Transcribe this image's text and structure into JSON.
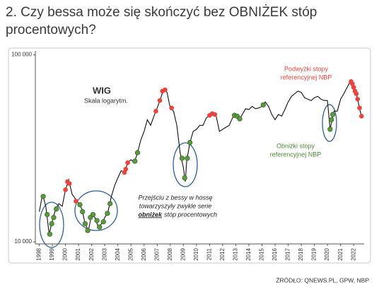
{
  "title": [
    "2. Czy bessa może się skończyć bez OBNIŻEK stóp",
    "procentowych?"
  ],
  "source": "ŹRÓDŁO: QNEWS.PL, GPW, NBP",
  "chart_data": {
    "type": "line",
    "log_scale": true,
    "subtitle": "Skala logarytm.",
    "annotations": {
      "hikes": [
        "Podwyżki stopy",
        "referencyjnej NBP"
      ],
      "cuts": [
        "Obniżki stopy",
        "referencyjnej NBP"
      ],
      "note": [
        "Przejściu z bessy w hossę",
        "towarzyszyły zwykle serie",
        "obniżek",
        "stóp procentowych"
      ]
    },
    "xlim": [
      1997.7,
      2022.8
    ],
    "xticks": [
      1998,
      1999,
      2000,
      2001,
      2002,
      2003,
      2004,
      2005,
      2006,
      2007,
      2008,
      2009,
      2010,
      2011,
      2012,
      2013,
      2014,
      2015,
      2016,
      2017,
      2018,
      2019,
      2020,
      2021,
      2022
    ],
    "ylim": [
      9750,
      105000
    ],
    "yticks": [
      {
        "value": 10000,
        "label": "10 000"
      },
      {
        "value": 100000,
        "label": "100 000"
      }
    ],
    "series": [
      {
        "name": "WIG",
        "color": "#111111",
        "x": [
          1998.0,
          1998.25,
          1998.5,
          1998.75,
          1999.0,
          1999.25,
          1999.5,
          1999.75,
          2000.0,
          2000.25,
          2000.5,
          2000.75,
          2001.0,
          2001.25,
          2001.5,
          2001.75,
          2002.0,
          2002.25,
          2002.5,
          2002.75,
          2003.0,
          2003.25,
          2003.5,
          2003.75,
          2004.0,
          2004.25,
          2004.5,
          2004.75,
          2005.0,
          2005.25,
          2005.5,
          2005.75,
          2006.0,
          2006.25,
          2006.5,
          2006.75,
          2007.0,
          2007.25,
          2007.5,
          2007.75,
          2008.0,
          2008.25,
          2008.5,
          2008.75,
          2009.0,
          2009.15,
          2009.25,
          2009.5,
          2009.75,
          2010.0,
          2010.25,
          2010.5,
          2010.75,
          2011.0,
          2011.25,
          2011.5,
          2011.75,
          2012.0,
          2012.25,
          2012.5,
          2012.75,
          2013.0,
          2013.25,
          2013.5,
          2013.75,
          2014.0,
          2014.25,
          2014.5,
          2014.75,
          2015.0,
          2015.25,
          2015.5,
          2015.75,
          2016.0,
          2016.25,
          2016.5,
          2016.75,
          2017.0,
          2017.25,
          2017.5,
          2017.75,
          2018.0,
          2018.25,
          2018.5,
          2018.75,
          2019.0,
          2019.25,
          2019.5,
          2019.75,
          2020.0,
          2020.2,
          2020.5,
          2020.75,
          2021.0,
          2021.25,
          2021.5,
          2021.75,
          2022.0,
          2022.25,
          2022.5,
          2022.6
        ],
        "values": [
          14500,
          18000,
          15500,
          11000,
          13000,
          15000,
          16000,
          15500,
          19000,
          21500,
          18000,
          17000,
          16000,
          15000,
          12500,
          11500,
          14000,
          13500,
          12000,
          12500,
          13500,
          14500,
          17500,
          20000,
          22000,
          24000,
          23500,
          26500,
          27500,
          26500,
          30000,
          35000,
          39000,
          45000,
          42000,
          47000,
          52000,
          58000,
          66000,
          63000,
          52000,
          50000,
          42000,
          30000,
          25000,
          21000,
          27000,
          34000,
          39000,
          40000,
          42000,
          42000,
          46000,
          47500,
          49000,
          47000,
          39000,
          40000,
          41000,
          42000,
          46000,
          48000,
          45000,
          48000,
          51500,
          51000,
          53000,
          51500,
          52000,
          53000,
          56000,
          53000,
          48000,
          45000,
          48000,
          47000,
          51000,
          56000,
          60000,
          62000,
          64000,
          63000,
          59000,
          58000,
          57000,
          59000,
          60000,
          58000,
          57000,
          57000,
          40000,
          50000,
          50000,
          58000,
          62000,
          67000,
          72000,
          67000,
          60000,
          50000,
          47000
        ]
      }
    ],
    "rate_hikes": {
      "color": "#e8453c",
      "x": [
        2000.0,
        2000.15,
        2000.3,
        2000.8,
        2004.5,
        2004.6,
        2004.75,
        2006.9,
        2007.2,
        2007.4,
        2007.6,
        2008.1,
        2011.0,
        2011.2,
        2011.4,
        2021.8,
        2021.9,
        2022.0,
        2022.1,
        2022.2,
        2022.3,
        2022.45,
        2022.6
      ],
      "values": [
        19000,
        21000,
        20500,
        16500,
        23500,
        24500,
        26500,
        50000,
        57000,
        64000,
        65000,
        52000,
        47500,
        48500,
        48000,
        72000,
        70000,
        67000,
        64000,
        62000,
        58000,
        52000,
        47000
      ]
    },
    "rate_cuts": {
      "color": "#5a9a3c",
      "x": [
        1998.3,
        1998.6,
        1998.8,
        1998.95,
        1999.1,
        1999.3,
        2001.1,
        2001.3,
        2001.5,
        2001.7,
        2001.9,
        2002.1,
        2002.4,
        2002.6,
        2002.9,
        2003.2,
        2003.4,
        2005.3,
        2005.5,
        2008.9,
        2009.1,
        2009.3,
        2009.5,
        2012.9,
        2013.1,
        2013.3,
        2015.1,
        2020.2,
        2020.3,
        2020.4
      ],
      "values": [
        17500,
        14000,
        11000,
        12500,
        13500,
        15000,
        15800,
        14500,
        12500,
        11500,
        13500,
        14000,
        13000,
        12000,
        12800,
        14200,
        16000,
        27000,
        30000,
        28000,
        22000,
        28000,
        34000,
        47500,
        47000,
        45500,
        54000,
        40000,
        45000,
        48000
      ]
    }
  }
}
